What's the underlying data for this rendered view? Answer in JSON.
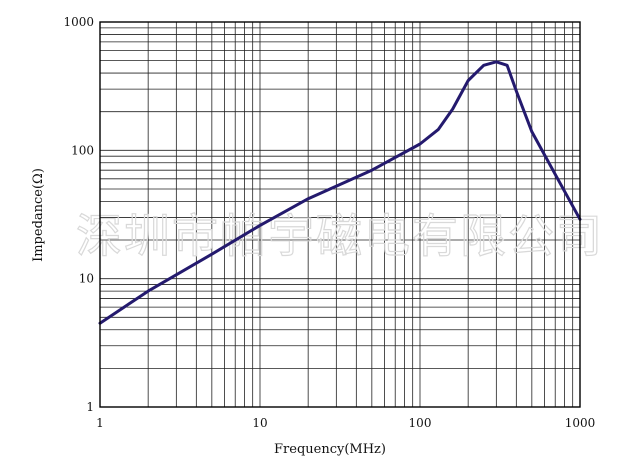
{
  "chart_data": {
    "type": "line",
    "xlabel": "Frequency(MHz)",
    "ylabel": "Impedance(Ω)",
    "x_scale": "log",
    "y_scale": "log",
    "xlim": [
      1,
      1000
    ],
    "ylim": [
      1,
      1000
    ],
    "x_ticks": [
      "1",
      "10",
      "100",
      "1000"
    ],
    "y_ticks": [
      "1",
      "10",
      "100",
      "1000"
    ],
    "grid": true,
    "legend": "none",
    "series": [
      {
        "color": "#241a6e",
        "x": [
          1,
          2,
          5,
          10,
          20,
          50,
          100,
          130,
          160,
          200,
          250,
          300,
          350,
          400,
          500,
          700,
          1000
        ],
        "y": [
          4.5,
          8,
          15.5,
          26,
          42,
          70,
          112,
          145,
          210,
          350,
          460,
          490,
          460,
          290,
          140,
          65,
          29
        ]
      }
    ]
  },
  "watermark": "深圳市帕宇磁电有限公司"
}
